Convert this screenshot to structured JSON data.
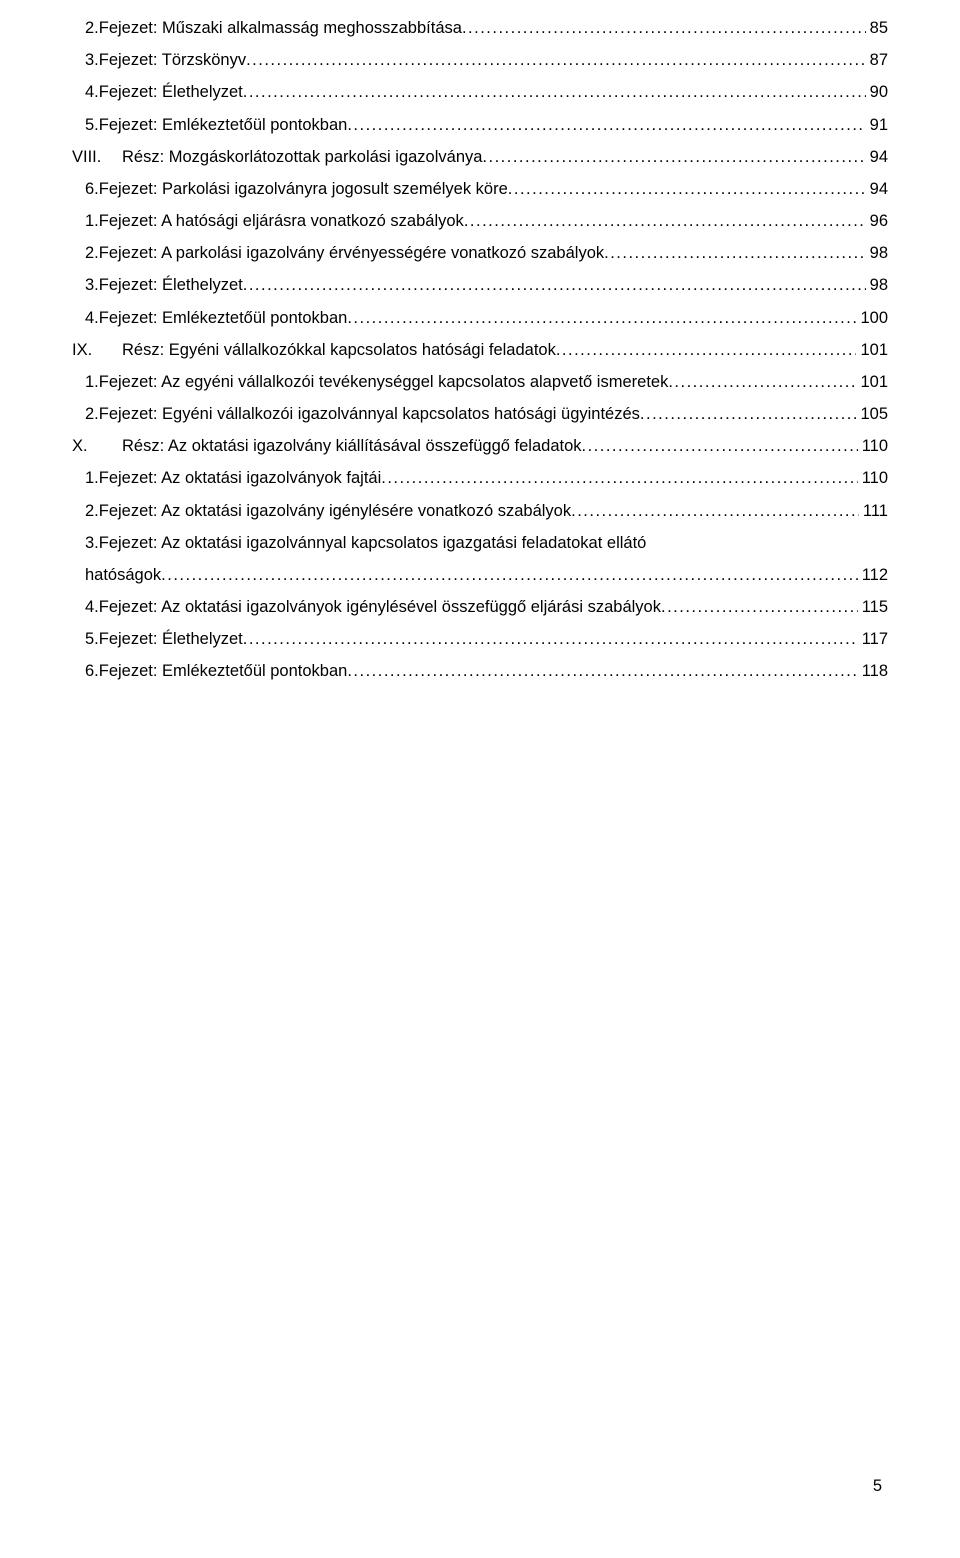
{
  "entries": [
    {
      "kind": "indent1",
      "title": "2.Fejezet: Műszaki alkalmasság meghosszabbítása",
      "page": "85"
    },
    {
      "kind": "indent1",
      "title": "3.Fejezet: Törzskönyv",
      "page": "87"
    },
    {
      "kind": "indent1",
      "title": "4.Fejezet: Élethelyzet",
      "page": "90"
    },
    {
      "kind": "indent1",
      "title": "5.Fejezet: Emlékeztetőül pontokban",
      "page": "91"
    },
    {
      "kind": "roman",
      "roman": "VIII.",
      "title": "Rész: Mozgáskorlátozottak parkolási igazolványa",
      "page": "94"
    },
    {
      "kind": "indent1",
      "title": "6.Fejezet: Parkolási igazolványra jogosult személyek köre",
      "page": "94"
    },
    {
      "kind": "indent1",
      "title": "1.Fejezet: A hatósági eljárásra vonatkozó szabályok",
      "page": "96"
    },
    {
      "kind": "indent1",
      "title": "2.Fejezet: A parkolási igazolvány érvényességére vonatkozó szabályok ",
      "page": "98"
    },
    {
      "kind": "indent1",
      "title": "3.Fejezet: Élethelyzet",
      "page": "98"
    },
    {
      "kind": "indent1",
      "title": "4.Fejezet: Emlékeztetőül pontokban",
      "page": "100"
    },
    {
      "kind": "roman",
      "roman": "IX.",
      "title": "Rész: Egyéni vállalkozókkal kapcsolatos hatósági feladatok",
      "page": "101"
    },
    {
      "kind": "indent1",
      "title": "1.Fejezet: Az egyéni vállalkozói tevékenységgel kapcsolatos alapvető ismeretek",
      "page": "101"
    },
    {
      "kind": "indent1",
      "title": "2.Fejezet: Egyéni vállalkozói igazolvánnyal kapcsolatos hatósági ügyintézés",
      "page": "105"
    },
    {
      "kind": "roman",
      "roman": "X.",
      "title": "Rész: Az oktatási igazolvány kiállításával összefüggő feladatok",
      "page": "110"
    },
    {
      "kind": "indent1",
      "title": "1.Fejezet: Az oktatási igazolványok fajtái",
      "page": "110"
    },
    {
      "kind": "indent1",
      "title": "2.Fejezet: Az oktatási igazolvány igénylésére vonatkozó szabályok",
      "page": "111"
    },
    {
      "kind": "wrap",
      "line1": "3.Fejezet: Az oktatási igazolvánnyal kapcsolatos igazgatási feladatokat ellátó",
      "line2": "hatóságok",
      "page": "112"
    },
    {
      "kind": "indent1",
      "title": "4.Fejezet: Az oktatási igazolványok igénylésével összefüggő eljárási szabályok",
      "page": "115"
    },
    {
      "kind": "indent1",
      "title": "5.Fejezet: Élethelyzet",
      "page": "117"
    },
    {
      "kind": "indent1",
      "title": "6.Fejezet: Emlékeztetőül pontokban",
      "page": "118"
    }
  ],
  "pageNumber": "5"
}
